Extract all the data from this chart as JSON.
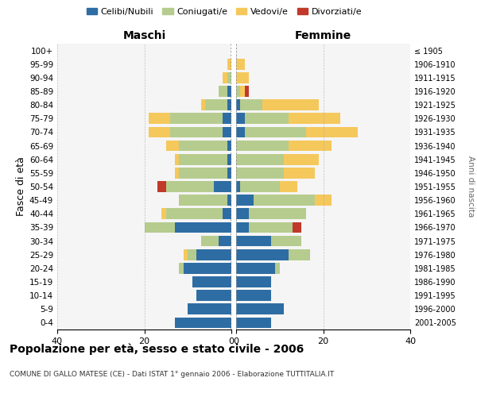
{
  "age_groups": [
    "0-4",
    "5-9",
    "10-14",
    "15-19",
    "20-24",
    "25-29",
    "30-34",
    "35-39",
    "40-44",
    "45-49",
    "50-54",
    "55-59",
    "60-64",
    "65-69",
    "70-74",
    "75-79",
    "80-84",
    "85-89",
    "90-94",
    "95-99",
    "100+"
  ],
  "birth_years": [
    "2001-2005",
    "1996-2000",
    "1991-1995",
    "1986-1990",
    "1981-1985",
    "1976-1980",
    "1971-1975",
    "1966-1970",
    "1961-1965",
    "1956-1960",
    "1951-1955",
    "1946-1950",
    "1941-1945",
    "1936-1940",
    "1931-1935",
    "1926-1930",
    "1921-1925",
    "1916-1920",
    "1911-1915",
    "1906-1910",
    "≤ 1905"
  ],
  "maschi": {
    "celibi": [
      13,
      10,
      8,
      9,
      11,
      8,
      3,
      13,
      2,
      1,
      4,
      1,
      1,
      1,
      2,
      2,
      1,
      1,
      0,
      0,
      0
    ],
    "coniugati": [
      0,
      0,
      0,
      0,
      1,
      2,
      4,
      7,
      13,
      11,
      11,
      11,
      11,
      11,
      12,
      12,
      5,
      2,
      1,
      0,
      0
    ],
    "vedovi": [
      0,
      0,
      0,
      0,
      0,
      1,
      0,
      0,
      1,
      0,
      0,
      1,
      1,
      3,
      5,
      5,
      1,
      0,
      1,
      1,
      0
    ],
    "divorziati": [
      0,
      0,
      0,
      0,
      0,
      0,
      0,
      0,
      0,
      0,
      2,
      0,
      0,
      0,
      0,
      0,
      0,
      0,
      0,
      0,
      0
    ]
  },
  "femmine": {
    "nubili": [
      8,
      11,
      8,
      8,
      9,
      12,
      8,
      3,
      3,
      4,
      1,
      0,
      0,
      0,
      2,
      2,
      1,
      0,
      0,
      0,
      0
    ],
    "coniugate": [
      0,
      0,
      0,
      0,
      1,
      5,
      7,
      10,
      13,
      14,
      9,
      11,
      11,
      12,
      14,
      10,
      5,
      1,
      0,
      0,
      0
    ],
    "vedove": [
      0,
      0,
      0,
      0,
      0,
      0,
      0,
      0,
      0,
      4,
      4,
      7,
      8,
      10,
      12,
      12,
      13,
      1,
      3,
      2,
      0
    ],
    "divorziate": [
      0,
      0,
      0,
      0,
      0,
      0,
      0,
      2,
      0,
      0,
      0,
      0,
      0,
      0,
      0,
      0,
      0,
      1,
      0,
      0,
      0
    ]
  },
  "colors": {
    "celibi": "#2E6DA4",
    "coniugati": "#B5CC8E",
    "vedovi": "#F5C85C",
    "divorziati": "#C0392B"
  },
  "xlim": 40,
  "title": "Popolazione per età, sesso e stato civile - 2006",
  "subtitle": "COMUNE DI GALLO MATESE (CE) - Dati ISTAT 1° gennaio 2006 - Elaborazione TUTTITALIA.IT",
  "ylabel_left": "Fasce di età",
  "ylabel_right": "Anni di nascita",
  "xlabel_left": "Maschi",
  "xlabel_right": "Femmine"
}
